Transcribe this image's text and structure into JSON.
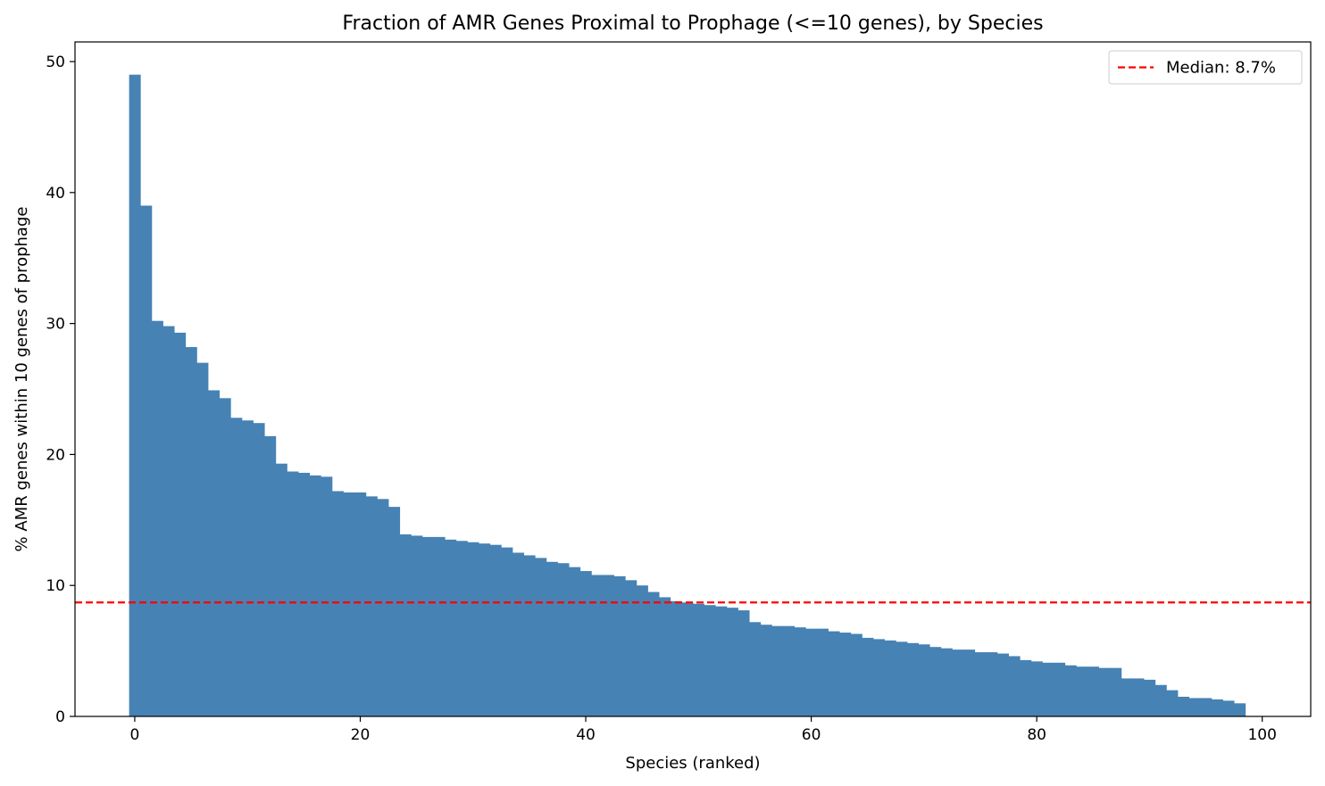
{
  "chart_data": {
    "type": "bar",
    "title": "Fraction of AMR Genes Proximal to Prophage (<=10 genes), by Species",
    "xlabel": "Species (ranked)",
    "ylabel": "% AMR genes within 10 genes of prophage",
    "xlim": [
      -5.3,
      104.3
    ],
    "ylim": [
      0,
      51.5
    ],
    "xticks": [
      0,
      20,
      40,
      60,
      80,
      100
    ],
    "yticks": [
      0,
      10,
      20,
      30,
      40,
      50
    ],
    "grid": false,
    "legend_position": "top-right",
    "bar_color": "#4682b4",
    "x": [
      0,
      1,
      2,
      3,
      4,
      5,
      6,
      7,
      8,
      9,
      10,
      11,
      12,
      13,
      14,
      15,
      16,
      17,
      18,
      19,
      20,
      21,
      22,
      23,
      24,
      25,
      26,
      27,
      28,
      29,
      30,
      31,
      32,
      33,
      34,
      35,
      36,
      37,
      38,
      39,
      40,
      41,
      42,
      43,
      44,
      45,
      46,
      47,
      48,
      49,
      50,
      51,
      52,
      53,
      54,
      55,
      56,
      57,
      58,
      59,
      60,
      61,
      62,
      63,
      64,
      65,
      66,
      67,
      68,
      69,
      70,
      71,
      72,
      73,
      74,
      75,
      76,
      77,
      78,
      79,
      80,
      81,
      82,
      83,
      84,
      85,
      86,
      87,
      88,
      89,
      90,
      91,
      92,
      93,
      94,
      95,
      96,
      97,
      98
    ],
    "values": [
      49.0,
      39.0,
      30.2,
      29.8,
      29.3,
      28.2,
      27.0,
      24.9,
      24.3,
      22.8,
      22.6,
      22.4,
      21.4,
      19.3,
      18.7,
      18.6,
      18.4,
      18.3,
      17.2,
      17.1,
      17.1,
      16.8,
      16.6,
      16.0,
      13.9,
      13.8,
      13.7,
      13.7,
      13.5,
      13.4,
      13.3,
      13.2,
      13.1,
      12.9,
      12.5,
      12.3,
      12.1,
      11.8,
      11.7,
      11.4,
      11.1,
      10.8,
      10.8,
      10.7,
      10.4,
      10.0,
      9.5,
      9.1,
      8.8,
      8.7,
      8.6,
      8.5,
      8.4,
      8.3,
      8.1,
      7.2,
      7.0,
      6.9,
      6.9,
      6.8,
      6.7,
      6.7,
      6.5,
      6.4,
      6.3,
      6.0,
      5.9,
      5.8,
      5.7,
      5.6,
      5.5,
      5.3,
      5.2,
      5.1,
      5.1,
      4.9,
      4.9,
      4.8,
      4.6,
      4.3,
      4.2,
      4.1,
      4.1,
      3.9,
      3.8,
      3.8,
      3.7,
      3.7,
      2.9,
      2.9,
      2.8,
      2.4,
      2.0,
      1.5,
      1.4,
      1.4,
      1.3,
      1.2,
      1.0
    ],
    "reference_line": {
      "y": 8.7,
      "label": "Median: 8.7%",
      "color": "#ff0000",
      "style": "dashed"
    }
  }
}
